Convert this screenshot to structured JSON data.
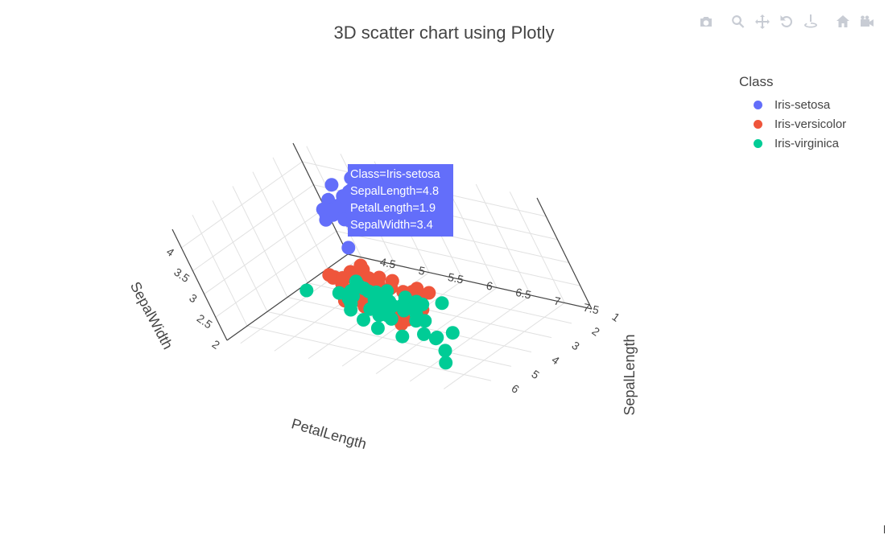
{
  "title": "3D scatter chart using Plotly",
  "modebar": {
    "buttons": [
      "camera-icon",
      "zoom-icon",
      "pan-icon",
      "orbit-rotation-icon",
      "turntable-rotation-icon",
      "reset-camera-icon",
      "camera-view-icon"
    ]
  },
  "legend": {
    "title": "Class",
    "items": [
      {
        "label": "Iris-setosa",
        "color": "#636efa"
      },
      {
        "label": "Iris-versicolor",
        "color": "#ef553b"
      },
      {
        "label": "Iris-virginica",
        "color": "#00cc96"
      }
    ]
  },
  "hover": {
    "color": "#636efa",
    "lines": [
      "Class=Iris-setosa",
      "SepalLength=4.8",
      "PetalLength=1.9",
      "SepalWidth=3.4"
    ]
  },
  "chart_data": {
    "type": "scatter",
    "title": "3D scatter chart using Plotly",
    "axes": {
      "x": {
        "label": "PetalLength",
        "ticks": [
          "1",
          "2",
          "3",
          "4",
          "5",
          "6"
        ],
        "range": [
          1,
          7
        ]
      },
      "y": {
        "label": "SepalLength",
        "ticks": [
          "4.5",
          "5",
          "5.5",
          "6",
          "6.5",
          "7",
          "7.5"
        ],
        "range": [
          4.3,
          7.9
        ]
      },
      "z": {
        "label": "SepalWidth",
        "ticks": [
          "2",
          "2.5",
          "3",
          "3.5",
          "4"
        ],
        "range": [
          2,
          4.4
        ]
      }
    },
    "grid": true,
    "legend_position": "top-right",
    "series": [
      {
        "name": "Iris-setosa",
        "color": "#636efa",
        "points": [
          [
            1.4,
            5.1,
            3.5
          ],
          [
            1.4,
            4.9,
            3.0
          ],
          [
            1.3,
            4.7,
            3.2
          ],
          [
            1.5,
            4.6,
            3.1
          ],
          [
            1.4,
            5.0,
            3.6
          ],
          [
            1.7,
            5.4,
            3.9
          ],
          [
            1.4,
            4.6,
            3.4
          ],
          [
            1.5,
            5.0,
            3.4
          ],
          [
            1.4,
            4.4,
            2.9
          ],
          [
            1.5,
            4.9,
            3.1
          ],
          [
            1.5,
            5.4,
            3.7
          ],
          [
            1.6,
            4.8,
            3.4
          ],
          [
            1.4,
            4.8,
            3.0
          ],
          [
            1.1,
            4.3,
            3.0
          ],
          [
            1.2,
            5.8,
            4.0
          ],
          [
            1.5,
            5.7,
            4.4
          ],
          [
            1.3,
            5.4,
            3.9
          ],
          [
            1.4,
            5.1,
            3.5
          ],
          [
            1.7,
            5.7,
            3.8
          ],
          [
            1.5,
            5.1,
            3.8
          ],
          [
            1.7,
            5.4,
            3.4
          ],
          [
            1.5,
            5.1,
            3.7
          ],
          [
            1.0,
            4.6,
            3.6
          ],
          [
            1.7,
            5.1,
            3.3
          ],
          [
            1.9,
            4.8,
            3.4
          ],
          [
            1.6,
            5.0,
            3.0
          ],
          [
            1.6,
            5.0,
            3.4
          ],
          [
            1.5,
            5.2,
            3.5
          ],
          [
            1.4,
            5.2,
            3.4
          ],
          [
            1.6,
            4.7,
            3.2
          ],
          [
            1.6,
            4.8,
            3.1
          ],
          [
            1.5,
            5.4,
            3.4
          ],
          [
            1.5,
            5.2,
            4.1
          ],
          [
            1.4,
            5.5,
            4.2
          ],
          [
            1.2,
            5.0,
            3.2
          ],
          [
            1.3,
            5.5,
            3.5
          ],
          [
            1.3,
            4.4,
            3.0
          ],
          [
            1.5,
            5.1,
            3.4
          ],
          [
            1.3,
            5.0,
            3.5
          ],
          [
            1.3,
            4.5,
            2.3
          ],
          [
            1.6,
            5.0,
            3.5
          ],
          [
            1.9,
            5.1,
            3.8
          ],
          [
            1.4,
            4.8,
            3.0
          ],
          [
            1.6,
            5.1,
            3.8
          ],
          [
            1.4,
            4.6,
            3.2
          ],
          [
            1.5,
            5.3,
            3.7
          ],
          [
            1.4,
            5.0,
            3.3
          ]
        ]
      },
      {
        "name": "Iris-versicolor",
        "color": "#ef553b",
        "points": [
          [
            4.7,
            7.0,
            3.2
          ],
          [
            4.5,
            6.4,
            3.2
          ],
          [
            4.9,
            6.9,
            3.1
          ],
          [
            4.0,
            5.5,
            2.3
          ],
          [
            4.6,
            6.5,
            2.8
          ],
          [
            4.5,
            5.7,
            2.8
          ],
          [
            4.7,
            6.3,
            3.3
          ],
          [
            3.3,
            4.9,
            2.4
          ],
          [
            4.6,
            6.6,
            2.9
          ],
          [
            3.9,
            5.2,
            2.7
          ],
          [
            3.5,
            5.0,
            2.0
          ],
          [
            4.2,
            5.9,
            3.0
          ],
          [
            4.0,
            6.0,
            2.2
          ],
          [
            4.7,
            6.1,
            2.9
          ],
          [
            3.6,
            5.6,
            2.9
          ],
          [
            4.4,
            6.7,
            3.1
          ],
          [
            4.5,
            5.6,
            3.0
          ],
          [
            4.1,
            5.8,
            2.7
          ],
          [
            4.5,
            6.2,
            2.2
          ],
          [
            3.9,
            5.6,
            2.5
          ],
          [
            4.8,
            5.9,
            3.2
          ],
          [
            4.0,
            6.1,
            2.8
          ],
          [
            4.9,
            6.3,
            2.5
          ],
          [
            4.7,
            6.1,
            2.8
          ],
          [
            4.3,
            6.4,
            2.9
          ],
          [
            4.4,
            6.6,
            3.0
          ],
          [
            4.8,
            6.8,
            2.8
          ],
          [
            5.0,
            6.7,
            3.0
          ],
          [
            4.5,
            6.0,
            2.9
          ],
          [
            3.5,
            5.7,
            2.6
          ],
          [
            3.8,
            5.5,
            2.4
          ],
          [
            3.7,
            5.5,
            2.4
          ],
          [
            3.9,
            5.8,
            2.7
          ],
          [
            5.1,
            6.0,
            2.7
          ],
          [
            4.5,
            5.4,
            3.0
          ],
          [
            4.5,
            6.0,
            3.4
          ],
          [
            4.7,
            6.7,
            3.1
          ],
          [
            4.4,
            6.3,
            2.3
          ],
          [
            4.1,
            5.6,
            3.0
          ],
          [
            4.0,
            5.5,
            2.5
          ],
          [
            4.4,
            5.5,
            2.6
          ],
          [
            4.6,
            6.1,
            3.0
          ],
          [
            4.0,
            5.8,
            2.6
          ],
          [
            3.3,
            5.0,
            2.3
          ],
          [
            4.2,
            5.6,
            2.7
          ],
          [
            4.2,
            5.7,
            3.0
          ],
          [
            4.2,
            5.7,
            2.9
          ],
          [
            4.3,
            6.2,
            2.9
          ],
          [
            3.0,
            5.1,
            2.5
          ],
          [
            4.1,
            5.7,
            2.8
          ]
        ]
      },
      {
        "name": "Iris-virginica",
        "color": "#00cc96",
        "points": [
          [
            6.0,
            6.3,
            3.3
          ],
          [
            5.1,
            5.8,
            2.7
          ],
          [
            5.9,
            7.1,
            3.0
          ],
          [
            5.6,
            6.3,
            2.9
          ],
          [
            5.8,
            6.5,
            3.0
          ],
          [
            6.6,
            7.6,
            3.0
          ],
          [
            4.5,
            4.9,
            2.5
          ],
          [
            6.3,
            7.3,
            2.9
          ],
          [
            5.8,
            6.7,
            2.5
          ],
          [
            6.1,
            7.2,
            3.6
          ],
          [
            5.1,
            6.5,
            3.2
          ],
          [
            5.3,
            6.4,
            2.7
          ],
          [
            5.5,
            6.8,
            3.0
          ],
          [
            5.0,
            5.7,
            2.5
          ],
          [
            5.1,
            5.8,
            2.8
          ],
          [
            5.3,
            6.4,
            3.2
          ],
          [
            5.5,
            6.5,
            3.0
          ],
          [
            6.7,
            7.7,
            3.8
          ],
          [
            6.9,
            7.7,
            2.6
          ],
          [
            5.0,
            6.0,
            2.2
          ],
          [
            5.7,
            6.9,
            3.2
          ],
          [
            4.9,
            5.6,
            2.8
          ],
          [
            6.7,
            7.7,
            2.8
          ],
          [
            4.9,
            6.3,
            2.7
          ],
          [
            5.7,
            6.7,
            3.3
          ],
          [
            6.0,
            7.2,
            3.2
          ],
          [
            4.8,
            6.2,
            2.8
          ],
          [
            4.9,
            6.1,
            3.0
          ],
          [
            5.6,
            6.4,
            2.8
          ],
          [
            5.8,
            7.2,
            3.0
          ],
          [
            6.1,
            7.4,
            2.8
          ],
          [
            6.4,
            7.9,
            3.8
          ],
          [
            5.6,
            6.4,
            2.8
          ],
          [
            5.1,
            6.3,
            2.8
          ],
          [
            5.6,
            6.1,
            2.6
          ],
          [
            6.1,
            7.7,
            3.0
          ],
          [
            5.6,
            6.3,
            3.4
          ],
          [
            5.5,
            6.4,
            3.1
          ],
          [
            4.8,
            6.0,
            3.0
          ],
          [
            5.4,
            6.9,
            3.1
          ],
          [
            5.6,
            6.7,
            3.1
          ],
          [
            5.1,
            6.9,
            3.1
          ],
          [
            5.9,
            6.8,
            3.2
          ],
          [
            5.7,
            6.7,
            3.3
          ],
          [
            5.2,
            6.7,
            3.0
          ],
          [
            5.0,
            6.3,
            2.5
          ],
          [
            5.2,
            6.5,
            3.0
          ],
          [
            5.4,
            6.2,
            3.4
          ],
          [
            5.1,
            5.9,
            3.0
          ]
        ]
      }
    ]
  }
}
